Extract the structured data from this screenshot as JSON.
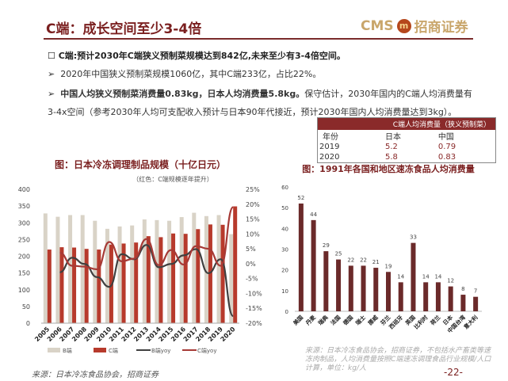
{
  "header": {
    "title": "C端：成长空间至少3-4倍",
    "logo_text": "CMS",
    "logo_cn": "招商证券"
  },
  "bullets": {
    "main": "C端:预计2030年C端狭义预制菜规模达到842亿,未来至少有3-4倍空间。",
    "b1": "2020年中国狭义预制菜规模1060亿，其中C端233亿，占比22%。",
    "b2_bold": "中国人均狭义预制菜消费量0.83kg，日本人均消费量5.8kg。",
    "b2_rest": "保守估计，2030年国内的C端人均消费量有3-4x空间（参考2030年人均可支配收入预计与日本90年代接近，预计2030年国内人均消费量达到3kg）。"
  },
  "table": {
    "title": "C端人均消费量（狭义预制菜）",
    "headers": [
      "年份",
      "日本",
      "中国"
    ],
    "rows": [
      [
        "2019",
        "5.2",
        "0.79"
      ],
      [
        "2020",
        "5.8",
        "0.83"
      ]
    ]
  },
  "colors": {
    "accent": "#7a1f1f",
    "b_bar": "#d9d3c7",
    "c_bar": "#b73a2c",
    "b_line": "#404040",
    "c_line": "#a63a36",
    "right_bar": "#6b2a2a"
  },
  "chart_data": [
    {
      "type": "bar",
      "title": "图：日本冷冻调理制品规模（十亿日元）",
      "subtitle": "（红色：C端规模逐年提升）",
      "categories": [
        "2005",
        "2006",
        "2007",
        "2008",
        "2009",
        "2010",
        "2011",
        "2012",
        "2013",
        "2014",
        "2015",
        "2016",
        "2017",
        "2018",
        "2019",
        "2020"
      ],
      "ylim": [
        0,
        400
      ],
      "yticks": [
        "0",
        "50",
        "100",
        "150",
        "200",
        "250",
        "300",
        "350",
        "400"
      ],
      "y2lim": [
        -20,
        25
      ],
      "y2ticks": [
        "-20%",
        "-15%",
        "-10%",
        "-5%",
        "0%",
        "5%",
        "10%",
        "15%",
        "20%",
        "25%"
      ],
      "legend": "bottom",
      "series": [
        {
          "name": "B端",
          "kind": "bar",
          "values": [
            328,
            318,
            323,
            323,
            306,
            282,
            289,
            292,
            310,
            308,
            306,
            317,
            330,
            320,
            323,
            266
          ]
        },
        {
          "name": "C端",
          "kind": "bar",
          "values": [
            220,
            227,
            226,
            222,
            220,
            235,
            238,
            241,
            260,
            257,
            268,
            267,
            281,
            295,
            294,
            349
          ]
        },
        {
          "name": "B端yoy",
          "kind": "line",
          "axis": "right",
          "values": [
            null,
            -2.9,
            2.0,
            -0.1,
            -4.5,
            -7.8,
            3.2,
            1.5,
            6.3,
            -1.2,
            -0.1,
            2.8,
            4.9,
            -3.2,
            1.5,
            -17.6
          ]
        },
        {
          "name": "C端yoy",
          "kind": "line",
          "axis": "right",
          "values": [
            null,
            3.7,
            -0.7,
            -1.0,
            -1.9,
            7.3,
            0.8,
            1.7,
            8.3,
            -0.5,
            4.6,
            -0.3,
            5.9,
            5.0,
            -0.7,
            19.0
          ]
        }
      ],
      "source": "来源：日本冷冻食品协会，招商证券"
    },
    {
      "type": "bar",
      "title": "图：1991年各国和地区速冻食品人均消费量",
      "categories": [
        "美国",
        "丹麦",
        "瑞典",
        "法国",
        "德国",
        "瑞士",
        "挪威",
        "芬兰",
        "西班牙",
        "英国",
        "比利时",
        "荷兰",
        "日本",
        "中国台湾",
        "意大利"
      ],
      "values": [
        52,
        44,
        29,
        25,
        22,
        22,
        21,
        19,
        14,
        33,
        14,
        14,
        12,
        8,
        7
      ],
      "ylim": [
        0,
        60
      ],
      "yticks": [
        "0",
        "10",
        "20",
        "30",
        "40",
        "50",
        "60"
      ],
      "source": "来源：日本冷冻食品协会，招商证券，不包括水产畜类等速冻肉制品，人均消费量按照C端速冻调理食品行业规模/人口计算，单位：kg/人"
    }
  ],
  "footer": {
    "page": "-22-"
  }
}
